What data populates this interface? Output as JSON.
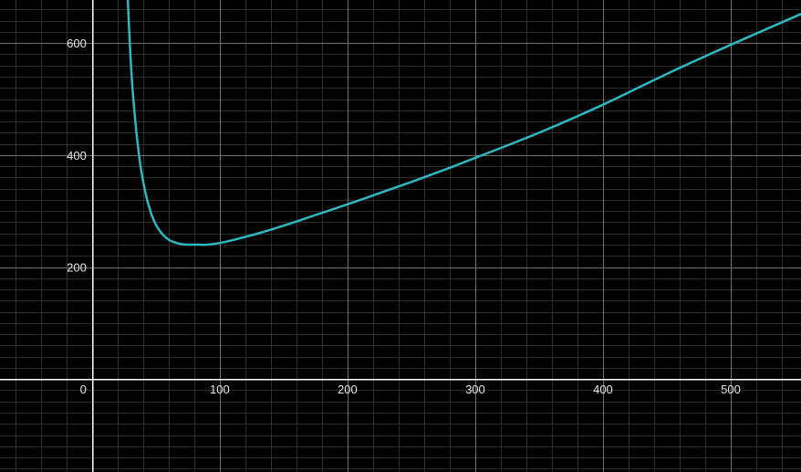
{
  "chart_data": {
    "type": "line",
    "title": "",
    "xlabel": "",
    "ylabel": "",
    "xlim": [
      -72,
      555
    ],
    "ylim": [
      -166,
      677
    ],
    "grid": true,
    "x_ticks": [
      0,
      100,
      200,
      300,
      400,
      500
    ],
    "x_tick_labels": [
      "0",
      "100",
      "200",
      "300",
      "400",
      "500"
    ],
    "y_ticks": [
      200,
      400,
      600
    ],
    "y_tick_labels": [
      "200",
      "400",
      "600"
    ],
    "minor_grid_step": 20,
    "series": [
      {
        "color": "#2fb7c0",
        "x": [
          28,
          30,
          32,
          35,
          38,
          42,
          46,
          50,
          55,
          60,
          65,
          70,
          75,
          80,
          85,
          90,
          100,
          110,
          120,
          130,
          150,
          175,
          200,
          225,
          250,
          275,
          300,
          350,
          400,
          450,
          500,
          555
        ],
        "y": [
          680,
          582,
          511,
          436,
          380,
          331,
          298,
          276,
          259,
          249,
          244,
          241,
          240,
          240,
          240,
          240,
          243,
          248,
          254,
          260,
          274,
          293,
          312,
          332,
          352,
          373,
          395,
          440,
          490,
          545,
          597,
          652
        ]
      }
    ]
  },
  "colors": {
    "background": "#000000",
    "axis": "#ffffff",
    "major_grid": "#6e6e6e",
    "minor_grid": "#2c2c2c",
    "curve": "#2fb7c0"
  }
}
